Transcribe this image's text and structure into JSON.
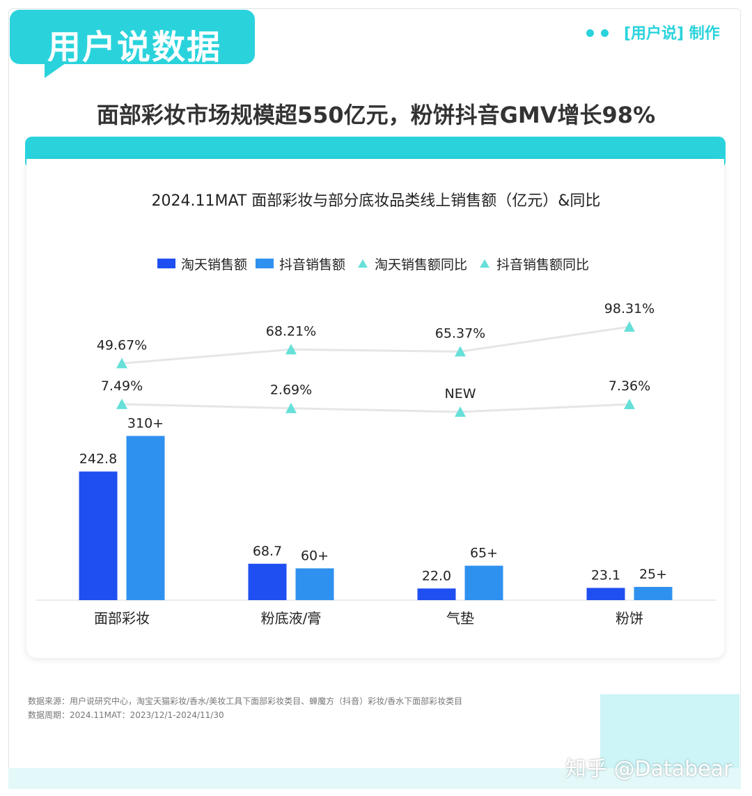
{
  "brand": {
    "badge": "用户说数据",
    "maker": "[用户说] 制作",
    "accent": "#2ad3dc"
  },
  "headline": "面部彩妆市场规模超550亿元，粉饼抖音GMV增长98%",
  "chart_data": {
    "type": "bar",
    "title": "2024.11MAT 面部彩妆与部分底妆品类线上销售额（亿元）&同比",
    "categories": [
      "面部彩妆",
      "粉底液/膏",
      "气垫",
      "粉饼"
    ],
    "series": [
      {
        "name": "淘天销售额",
        "kind": "bar",
        "color": "#1f4ff0",
        "values": [
          242.8,
          68.7,
          22.0,
          23.1
        ],
        "labels": [
          "242.8",
          "68.7",
          "22.0",
          "23.1"
        ]
      },
      {
        "name": "抖音销售额",
        "kind": "bar",
        "color": "#2f91ef",
        "values": [
          310,
          60,
          65,
          25
        ],
        "labels": [
          "310+",
          "60+",
          "65+",
          "25+"
        ]
      },
      {
        "name": "淘天销售额同比",
        "kind": "line",
        "color": "#66e0d8",
        "values": [
          7.49,
          2.69,
          null,
          7.36
        ],
        "labels": [
          "7.49%",
          "2.69%",
          "NEW",
          "7.36%"
        ]
      },
      {
        "name": "抖音销售额同比",
        "kind": "line",
        "color": "#66e0d8",
        "values": [
          49.67,
          68.21,
          65.37,
          98.31
        ],
        "labels": [
          "49.67%",
          "68.21%",
          "65.37%",
          "98.31%"
        ]
      }
    ],
    "ylabel": "",
    "xlabel": "",
    "legend": "top-center",
    "grid": false
  },
  "footer": {
    "source": "数据来源：用户说研究中心，淘宝天猫彩妆/香水/美妆工具下面部彩妆类目、蝉魔方（抖音）彩妆/香水下面部彩妆类目",
    "period": "数据周期：2024.11MAT：2023/12/1-2024/11/30",
    "watermark": "知乎 @Databear"
  }
}
